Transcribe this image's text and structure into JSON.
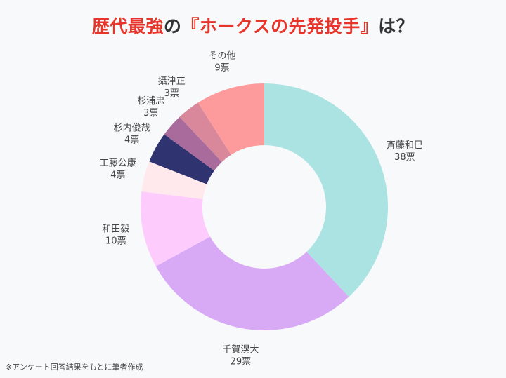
{
  "title": {
    "part1": "歴代最強",
    "part2": "の",
    "part3": "『ホークスの先発投手』",
    "part4": "は？"
  },
  "note": "※アンケート回答結果をもとに筆者作成",
  "chart_data": {
    "type": "pie",
    "donut": true,
    "unit": "票",
    "slices": [
      {
        "label": "斉藤和巳",
        "value": 38,
        "color": "#aae3e2"
      },
      {
        "label": "千賀滉大",
        "value": 29,
        "color": "#d8aaf5"
      },
      {
        "label": "和田毅",
        "value": 10,
        "color": "#fdccfd"
      },
      {
        "label": "工藤公康",
        "value": 4,
        "color": "#ffe9ec"
      },
      {
        "label": "杉内俊哉",
        "value": 4,
        "color": "#2f3370"
      },
      {
        "label": "杉浦忠",
        "value": 3,
        "color": "#a86b9c"
      },
      {
        "label": "攝津正",
        "value": 3,
        "color": "#d8889a"
      },
      {
        "label": "その他",
        "value": 9,
        "color": "#fd9a9c"
      }
    ]
  }
}
